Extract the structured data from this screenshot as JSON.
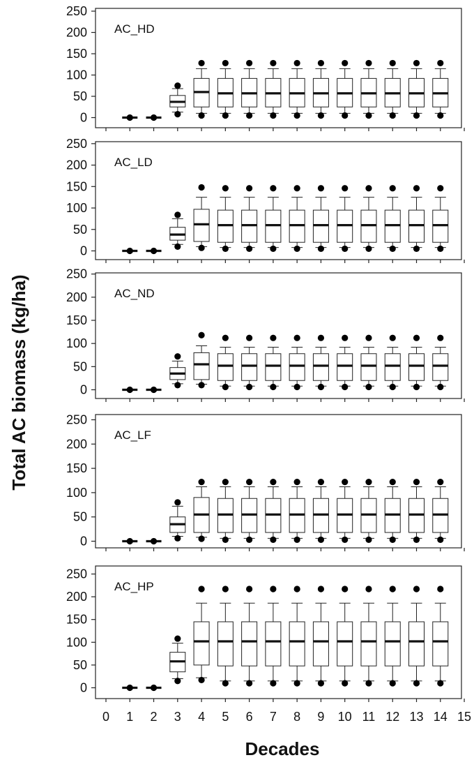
{
  "chart_data": {
    "type": "boxplot",
    "ylabel": "Total AC biomass (kg/ha)",
    "xlabel": "Decades",
    "xlim": [
      0,
      15
    ],
    "x_ticks": [
      0,
      1,
      2,
      3,
      4,
      5,
      6,
      7,
      8,
      9,
      10,
      11,
      12,
      13,
      14,
      15
    ],
    "ylim": [
      0,
      250
    ],
    "y_ticks": [
      0,
      50,
      100,
      150,
      200,
      250
    ],
    "grid": false,
    "panels": [
      {
        "label": "AC_HD",
        "boxes": [
          {
            "x": 1,
            "q1": 0,
            "median": 0,
            "q3": 0,
            "whisker_low": 0,
            "whisker_high": 0,
            "outlier_low": 0,
            "outlier_high": 0
          },
          {
            "x": 2,
            "q1": 0,
            "median": 0,
            "q3": 0,
            "whisker_low": 0,
            "whisker_high": 0,
            "outlier_low": 0,
            "outlier_high": 0
          },
          {
            "x": 3,
            "q1": 25,
            "median": 37,
            "q3": 52,
            "whisker_low": 13,
            "whisker_high": 68,
            "outlier_low": 8,
            "outlier_high": 75
          },
          {
            "x": 4,
            "q1": 25,
            "median": 60,
            "q3": 92,
            "whisker_low": 10,
            "whisker_high": 115,
            "outlier_low": 5,
            "outlier_high": 128
          },
          {
            "x": 5,
            "q1": 25,
            "median": 57,
            "q3": 92,
            "whisker_low": 10,
            "whisker_high": 115,
            "outlier_low": 5,
            "outlier_high": 128
          },
          {
            "x": 6,
            "q1": 25,
            "median": 57,
            "q3": 92,
            "whisker_low": 10,
            "whisker_high": 115,
            "outlier_low": 5,
            "outlier_high": 128
          },
          {
            "x": 7,
            "q1": 25,
            "median": 57,
            "q3": 92,
            "whisker_low": 10,
            "whisker_high": 115,
            "outlier_low": 5,
            "outlier_high": 128
          },
          {
            "x": 8,
            "q1": 25,
            "median": 57,
            "q3": 92,
            "whisker_low": 10,
            "whisker_high": 115,
            "outlier_low": 5,
            "outlier_high": 128
          },
          {
            "x": 9,
            "q1": 25,
            "median": 57,
            "q3": 92,
            "whisker_low": 10,
            "whisker_high": 115,
            "outlier_low": 5,
            "outlier_high": 128
          },
          {
            "x": 10,
            "q1": 25,
            "median": 57,
            "q3": 92,
            "whisker_low": 10,
            "whisker_high": 115,
            "outlier_low": 5,
            "outlier_high": 128
          },
          {
            "x": 11,
            "q1": 25,
            "median": 57,
            "q3": 92,
            "whisker_low": 10,
            "whisker_high": 115,
            "outlier_low": 5,
            "outlier_high": 128
          },
          {
            "x": 12,
            "q1": 25,
            "median": 57,
            "q3": 92,
            "whisker_low": 10,
            "whisker_high": 115,
            "outlier_low": 5,
            "outlier_high": 128
          },
          {
            "x": 13,
            "q1": 25,
            "median": 57,
            "q3": 92,
            "whisker_low": 10,
            "whisker_high": 115,
            "outlier_low": 5,
            "outlier_high": 128
          },
          {
            "x": 14,
            "q1": 25,
            "median": 57,
            "q3": 92,
            "whisker_low": 10,
            "whisker_high": 115,
            "outlier_low": 5,
            "outlier_high": 128
          }
        ]
      },
      {
        "label": "AC_LD",
        "boxes": [
          {
            "x": 1,
            "q1": 0,
            "median": 0,
            "q3": 0,
            "whisker_low": 0,
            "whisker_high": 0,
            "outlier_low": 0,
            "outlier_high": 0
          },
          {
            "x": 2,
            "q1": 0,
            "median": 0,
            "q3": 0,
            "whisker_low": 0,
            "whisker_high": 0,
            "outlier_low": 0,
            "outlier_high": 0
          },
          {
            "x": 3,
            "q1": 25,
            "median": 38,
            "q3": 55,
            "whisker_low": 15,
            "whisker_high": 75,
            "outlier_low": 10,
            "outlier_high": 84
          },
          {
            "x": 4,
            "q1": 22,
            "median": 62,
            "q3": 97,
            "whisker_low": 10,
            "whisker_high": 125,
            "outlier_low": 7,
            "outlier_high": 148
          },
          {
            "x": 5,
            "q1": 20,
            "median": 60,
            "q3": 95,
            "whisker_low": 8,
            "whisker_high": 125,
            "outlier_low": 5,
            "outlier_high": 146
          },
          {
            "x": 6,
            "q1": 20,
            "median": 60,
            "q3": 95,
            "whisker_low": 8,
            "whisker_high": 125,
            "outlier_low": 5,
            "outlier_high": 146
          },
          {
            "x": 7,
            "q1": 20,
            "median": 60,
            "q3": 95,
            "whisker_low": 8,
            "whisker_high": 125,
            "outlier_low": 5,
            "outlier_high": 146
          },
          {
            "x": 8,
            "q1": 20,
            "median": 60,
            "q3": 95,
            "whisker_low": 8,
            "whisker_high": 125,
            "outlier_low": 5,
            "outlier_high": 146
          },
          {
            "x": 9,
            "q1": 20,
            "median": 60,
            "q3": 95,
            "whisker_low": 8,
            "whisker_high": 125,
            "outlier_low": 5,
            "outlier_high": 146
          },
          {
            "x": 10,
            "q1": 20,
            "median": 60,
            "q3": 95,
            "whisker_low": 8,
            "whisker_high": 125,
            "outlier_low": 5,
            "outlier_high": 146
          },
          {
            "x": 11,
            "q1": 20,
            "median": 60,
            "q3": 95,
            "whisker_low": 8,
            "whisker_high": 125,
            "outlier_low": 5,
            "outlier_high": 146
          },
          {
            "x": 12,
            "q1": 20,
            "median": 60,
            "q3": 95,
            "whisker_low": 8,
            "whisker_high": 125,
            "outlier_low": 5,
            "outlier_high": 146
          },
          {
            "x": 13,
            "q1": 20,
            "median": 60,
            "q3": 95,
            "whisker_low": 8,
            "whisker_high": 125,
            "outlier_low": 5,
            "outlier_high": 146
          },
          {
            "x": 14,
            "q1": 20,
            "median": 60,
            "q3": 95,
            "whisker_low": 8,
            "whisker_high": 125,
            "outlier_low": 5,
            "outlier_high": 146
          }
        ]
      },
      {
        "label": "AC_ND",
        "boxes": [
          {
            "x": 1,
            "q1": 0,
            "median": 0,
            "q3": 0,
            "whisker_low": 0,
            "whisker_high": 0,
            "outlier_low": 0,
            "outlier_high": 0
          },
          {
            "x": 2,
            "q1": 0,
            "median": 0,
            "q3": 0,
            "whisker_low": 0,
            "whisker_high": 0,
            "outlier_low": 0,
            "outlier_high": 0
          },
          {
            "x": 3,
            "q1": 22,
            "median": 35,
            "q3": 48,
            "whisker_low": 13,
            "whisker_high": 62,
            "outlier_low": 10,
            "outlier_high": 72
          },
          {
            "x": 4,
            "q1": 22,
            "median": 55,
            "q3": 80,
            "whisker_low": 12,
            "whisker_high": 95,
            "outlier_low": 10,
            "outlier_high": 118
          },
          {
            "x": 5,
            "q1": 20,
            "median": 52,
            "q3": 78,
            "whisker_low": 8,
            "whisker_high": 92,
            "outlier_low": 6,
            "outlier_high": 112
          },
          {
            "x": 6,
            "q1": 20,
            "median": 52,
            "q3": 78,
            "whisker_low": 8,
            "whisker_high": 92,
            "outlier_low": 6,
            "outlier_high": 112
          },
          {
            "x": 7,
            "q1": 20,
            "median": 52,
            "q3": 78,
            "whisker_low": 8,
            "whisker_high": 92,
            "outlier_low": 6,
            "outlier_high": 112
          },
          {
            "x": 8,
            "q1": 20,
            "median": 52,
            "q3": 78,
            "whisker_low": 8,
            "whisker_high": 92,
            "outlier_low": 6,
            "outlier_high": 112
          },
          {
            "x": 9,
            "q1": 20,
            "median": 52,
            "q3": 78,
            "whisker_low": 8,
            "whisker_high": 92,
            "outlier_low": 6,
            "outlier_high": 112
          },
          {
            "x": 10,
            "q1": 20,
            "median": 52,
            "q3": 78,
            "whisker_low": 8,
            "whisker_high": 92,
            "outlier_low": 6,
            "outlier_high": 112
          },
          {
            "x": 11,
            "q1": 20,
            "median": 52,
            "q3": 78,
            "whisker_low": 8,
            "whisker_high": 92,
            "outlier_low": 6,
            "outlier_high": 112
          },
          {
            "x": 12,
            "q1": 20,
            "median": 52,
            "q3": 78,
            "whisker_low": 8,
            "whisker_high": 92,
            "outlier_low": 6,
            "outlier_high": 112
          },
          {
            "x": 13,
            "q1": 20,
            "median": 52,
            "q3": 78,
            "whisker_low": 8,
            "whisker_high": 92,
            "outlier_low": 6,
            "outlier_high": 112
          },
          {
            "x": 14,
            "q1": 20,
            "median": 52,
            "q3": 78,
            "whisker_low": 8,
            "whisker_high": 92,
            "outlier_low": 6,
            "outlier_high": 112
          }
        ]
      },
      {
        "label": "AC_LF",
        "boxes": [
          {
            "x": 1,
            "q1": 0,
            "median": 0,
            "q3": 0,
            "whisker_low": 0,
            "whisker_high": 0,
            "outlier_low": 0,
            "outlier_high": 0
          },
          {
            "x": 2,
            "q1": 0,
            "median": 0,
            "q3": 0,
            "whisker_low": 0,
            "whisker_high": 0,
            "outlier_low": 0,
            "outlier_high": 0
          },
          {
            "x": 3,
            "q1": 18,
            "median": 35,
            "q3": 50,
            "whisker_low": 10,
            "whisker_high": 72,
            "outlier_low": 6,
            "outlier_high": 80
          },
          {
            "x": 4,
            "q1": 18,
            "median": 55,
            "q3": 90,
            "whisker_low": 8,
            "whisker_high": 112,
            "outlier_low": 5,
            "outlier_high": 122
          },
          {
            "x": 5,
            "q1": 18,
            "median": 55,
            "q3": 88,
            "whisker_low": 6,
            "whisker_high": 112,
            "outlier_low": 3,
            "outlier_high": 122
          },
          {
            "x": 6,
            "q1": 18,
            "median": 55,
            "q3": 88,
            "whisker_low": 6,
            "whisker_high": 112,
            "outlier_low": 3,
            "outlier_high": 122
          },
          {
            "x": 7,
            "q1": 18,
            "median": 55,
            "q3": 88,
            "whisker_low": 6,
            "whisker_high": 112,
            "outlier_low": 3,
            "outlier_high": 122
          },
          {
            "x": 8,
            "q1": 18,
            "median": 55,
            "q3": 88,
            "whisker_low": 6,
            "whisker_high": 112,
            "outlier_low": 3,
            "outlier_high": 122
          },
          {
            "x": 9,
            "q1": 18,
            "median": 55,
            "q3": 88,
            "whisker_low": 6,
            "whisker_high": 112,
            "outlier_low": 3,
            "outlier_high": 122
          },
          {
            "x": 10,
            "q1": 18,
            "median": 55,
            "q3": 88,
            "whisker_low": 6,
            "whisker_high": 112,
            "outlier_low": 3,
            "outlier_high": 122
          },
          {
            "x": 11,
            "q1": 18,
            "median": 55,
            "q3": 88,
            "whisker_low": 6,
            "whisker_high": 112,
            "outlier_low": 3,
            "outlier_high": 122
          },
          {
            "x": 12,
            "q1": 18,
            "median": 55,
            "q3": 88,
            "whisker_low": 6,
            "whisker_high": 112,
            "outlier_low": 3,
            "outlier_high": 122
          },
          {
            "x": 13,
            "q1": 18,
            "median": 55,
            "q3": 88,
            "whisker_low": 6,
            "whisker_high": 112,
            "outlier_low": 3,
            "outlier_high": 122
          },
          {
            "x": 14,
            "q1": 18,
            "median": 55,
            "q3": 88,
            "whisker_low": 6,
            "whisker_high": 112,
            "outlier_low": 3,
            "outlier_high": 122
          }
        ]
      },
      {
        "label": "AC_HP",
        "boxes": [
          {
            "x": 1,
            "q1": 0,
            "median": 0,
            "q3": 0,
            "whisker_low": 0,
            "whisker_high": 0,
            "outlier_low": 0,
            "outlier_high": 0
          },
          {
            "x": 2,
            "q1": 0,
            "median": 0,
            "q3": 0,
            "whisker_low": 0,
            "whisker_high": 0,
            "outlier_low": 0,
            "outlier_high": 0
          },
          {
            "x": 3,
            "q1": 35,
            "median": 58,
            "q3": 78,
            "whisker_low": 20,
            "whisker_high": 98,
            "outlier_low": 15,
            "outlier_high": 108
          },
          {
            "x": 4,
            "q1": 50,
            "median": 102,
            "q3": 145,
            "whisker_low": 22,
            "whisker_high": 186,
            "outlier_low": 17,
            "outlier_high": 217
          },
          {
            "x": 5,
            "q1": 48,
            "median": 102,
            "q3": 145,
            "whisker_low": 15,
            "whisker_high": 186,
            "outlier_low": 10,
            "outlier_high": 217
          },
          {
            "x": 6,
            "q1": 48,
            "median": 102,
            "q3": 145,
            "whisker_low": 15,
            "whisker_high": 186,
            "outlier_low": 10,
            "outlier_high": 217
          },
          {
            "x": 7,
            "q1": 48,
            "median": 102,
            "q3": 145,
            "whisker_low": 15,
            "whisker_high": 186,
            "outlier_low": 10,
            "outlier_high": 217
          },
          {
            "x": 8,
            "q1": 48,
            "median": 102,
            "q3": 145,
            "whisker_low": 15,
            "whisker_high": 186,
            "outlier_low": 10,
            "outlier_high": 217
          },
          {
            "x": 9,
            "q1": 48,
            "median": 102,
            "q3": 145,
            "whisker_low": 15,
            "whisker_high": 186,
            "outlier_low": 10,
            "outlier_high": 217
          },
          {
            "x": 10,
            "q1": 48,
            "median": 102,
            "q3": 145,
            "whisker_low": 15,
            "whisker_high": 186,
            "outlier_low": 10,
            "outlier_high": 217
          },
          {
            "x": 11,
            "q1": 48,
            "median": 102,
            "q3": 145,
            "whisker_low": 15,
            "whisker_high": 186,
            "outlier_low": 10,
            "outlier_high": 217
          },
          {
            "x": 12,
            "q1": 48,
            "median": 102,
            "q3": 145,
            "whisker_low": 15,
            "whisker_high": 186,
            "outlier_low": 10,
            "outlier_high": 217
          },
          {
            "x": 13,
            "q1": 48,
            "median": 102,
            "q3": 145,
            "whisker_low": 15,
            "whisker_high": 186,
            "outlier_low": 10,
            "outlier_high": 217
          },
          {
            "x": 14,
            "q1": 48,
            "median": 102,
            "q3": 145,
            "whisker_low": 15,
            "whisker_high": 186,
            "outlier_low": 10,
            "outlier_high": 217
          }
        ]
      }
    ]
  }
}
